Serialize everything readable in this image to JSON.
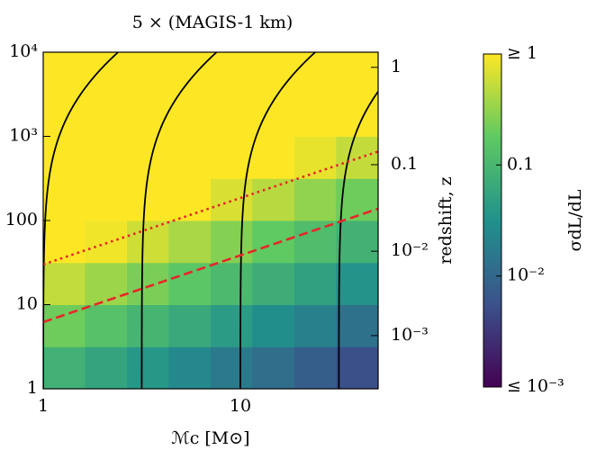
{
  "chart_data": {
    "type": "heatmap",
    "title": "5 × (MAGIS-1 km)",
    "xlabel": "ℳc [M⊙]",
    "y2label": "redshift, z",
    "colorbar_label": "σdL/dL",
    "xlim": [
      1,
      50
    ],
    "xticks": [
      1,
      10
    ],
    "ylim": [
      1,
      10000
    ],
    "yticks": [
      1,
      10,
      100,
      {
        "value": 1000,
        "label": "10³"
      },
      {
        "value": 10000,
        "label": "10⁴"
      }
    ],
    "y2ticks": [
      1,
      0.1,
      {
        "value": 0.01,
        "label": "10⁻²"
      },
      {
        "value": 0.001,
        "label": "10⁻³"
      }
    ],
    "log_x": true,
    "log_y": true,
    "colorscale": "viridis",
    "clim": [
      0.001,
      1
    ],
    "cticks": [
      {
        "value": 1,
        "label": "≥ 1"
      },
      0.1,
      {
        "value": 0.01,
        "label": "10⁻²"
      },
      {
        "value": 0.001,
        "label": "≤ 10⁻³"
      }
    ],
    "x_bins": [
      1,
      1.63,
      2.66,
      4.33,
      7.07,
      11.5,
      18.8,
      30.6,
      50
    ],
    "y_bins": [
      1,
      3.16,
      10,
      31.6,
      100,
      316,
      1000,
      3162,
      10000
    ],
    "cells": [
      [
        0.082,
        0.056,
        0.038,
        0.025,
        0.017,
        0.012,
        0.0079,
        0.0053
      ],
      [
        0.21,
        0.14,
        0.094,
        0.064,
        0.043,
        0.029,
        0.02,
        0.013
      ],
      [
        0.52,
        0.35,
        0.24,
        0.16,
        0.11,
        0.073,
        0.05,
        0.034
      ],
      [
        1,
        0.88,
        0.6,
        0.4,
        0.27,
        0.18,
        0.12,
        0.084
      ],
      [
        1,
        1,
        1,
        1,
        0.68,
        0.46,
        0.31,
        0.21
      ],
      [
        1,
        1,
        1,
        1,
        1,
        1,
        0.79,
        0.53
      ],
      [
        1,
        1,
        1,
        1,
        1,
        1,
        1,
        1
      ],
      [
        1,
        1,
        1,
        1,
        1,
        1,
        1,
        1
      ]
    ],
    "curves": [
      1,
      3.16,
      10,
      31.6
    ],
    "curve_color": "#000000",
    "series": [
      {
        "x": [
          1,
          50
        ],
        "values": [
          30,
          660
        ],
        "color": "#e8262a",
        "style": "dotted"
      },
      {
        "x": [
          1,
          50
        ],
        "values": [
          6.2,
          138
        ],
        "color": "#e8262a",
        "style": "dashed"
      }
    ]
  }
}
